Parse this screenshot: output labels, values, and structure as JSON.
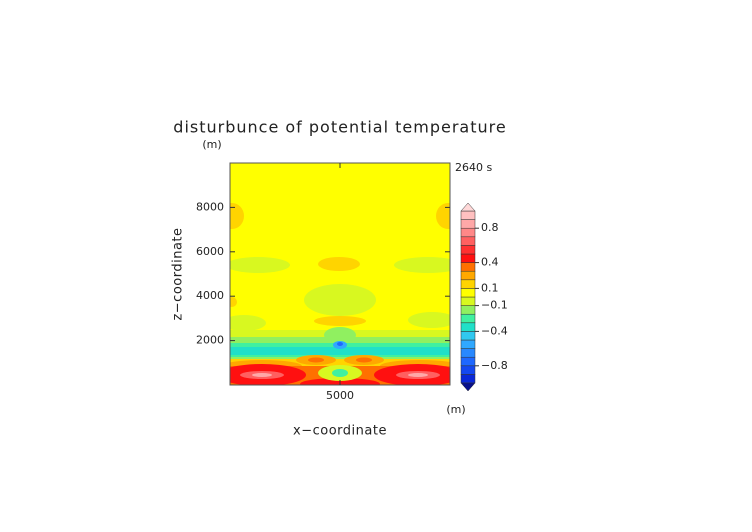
{
  "chart_data": {
    "type": "contour",
    "title": "disturbunce of potential temperature",
    "time_label": "2640 s",
    "xlabel": "x−coordinate",
    "ylabel": "z−coordinate",
    "x_unit": "(m)",
    "y_unit": "(m)",
    "xlim": [
      0,
      10000
    ],
    "ylim": [
      0,
      10000
    ],
    "xticks": [
      5000
    ],
    "yticks": [
      2000,
      4000,
      6000,
      8000
    ],
    "colorbar": {
      "levels": [
        -1,
        -0.9,
        -0.8,
        -0.7,
        -0.6,
        -0.5,
        -0.4,
        -0.3,
        -0.2,
        -0.1,
        0,
        0.1,
        0.2,
        0.3,
        0.4,
        0.5,
        0.6,
        0.7,
        0.8,
        0.9,
        1
      ],
      "colors": [
        "#0a28d8",
        "#1448f0",
        "#1e68ff",
        "#2888ff",
        "#30a8ff",
        "#30c8f0",
        "#20e0c8",
        "#40f0a0",
        "#90f060",
        "#d8f820",
        "#ffff00",
        "#ffd400",
        "#ffa800",
        "#ff7000",
        "#ff1010",
        "#ff3030",
        "#ff6060",
        "#ff8888",
        "#ffa8a8",
        "#ffc0c0"
      ],
      "under_color": "#08108c",
      "over_color": "#ffd8d8",
      "ticks": [
        {
          "value": -0.8,
          "label": "−0.8"
        },
        {
          "value": -0.4,
          "label": "−0.4"
        },
        {
          "value": -0.1,
          "label": "−0.1"
        },
        0.1,
        0.4,
        0.8
      ]
    }
  }
}
